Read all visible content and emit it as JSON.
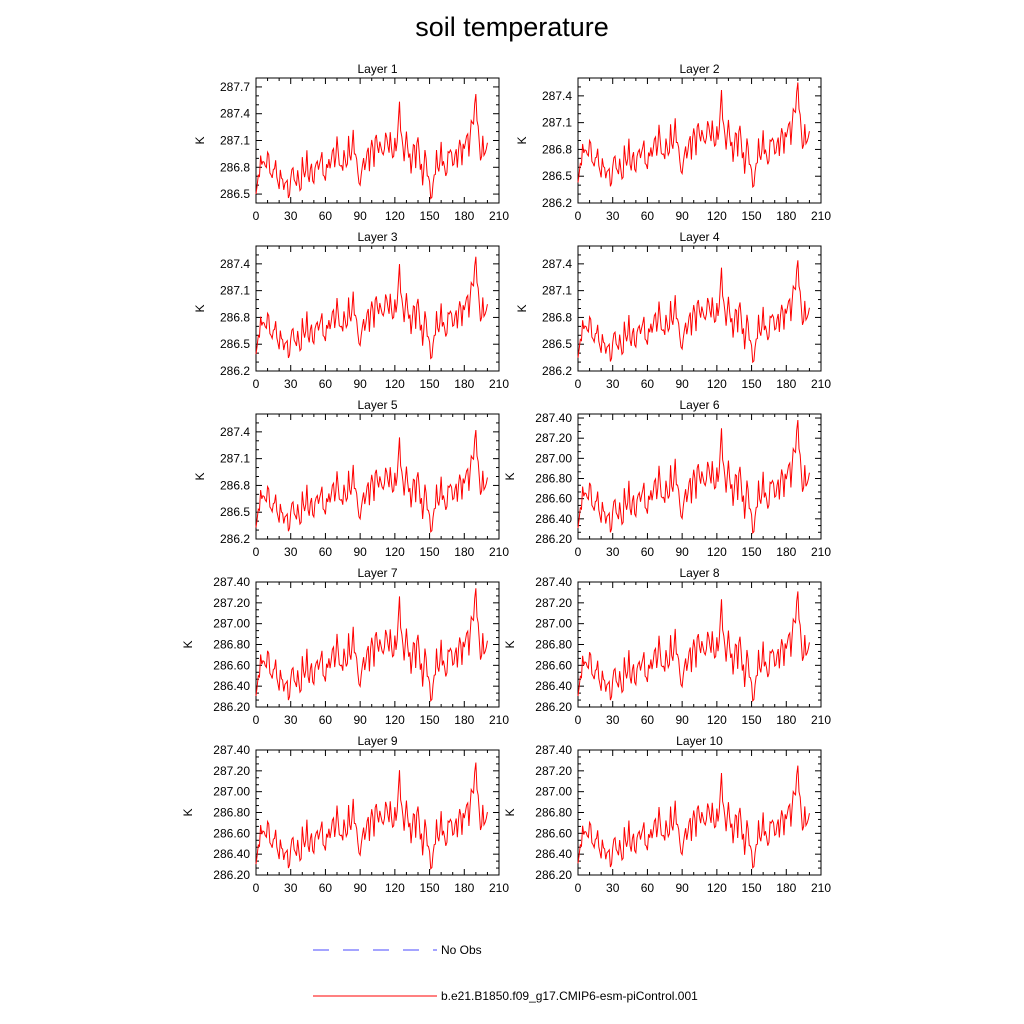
{
  "title": "soil temperature",
  "legend": {
    "entries": [
      {
        "label": "No Obs",
        "color": "#4a4aff",
        "style": "dashed"
      },
      {
        "label": "b.e21.B1850.f09_g17.CMIP6-esm-piControl.001",
        "color": "#ff0000",
        "style": "solid"
      }
    ]
  },
  "chart_data": {
    "type": "line",
    "ylabel": "K",
    "xlim": [
      0,
      210
    ],
    "xticks": [
      0,
      30,
      60,
      90,
      120,
      150,
      180,
      210
    ],
    "series_color": "#ff0000",
    "shape_keys": [
      [
        0,
        0.05
      ],
      [
        2,
        0.25
      ],
      [
        4,
        0.35
      ],
      [
        6,
        0.4
      ],
      [
        8,
        0.3
      ],
      [
        10,
        0.45
      ],
      [
        12,
        0.32
      ],
      [
        14,
        0.2
      ],
      [
        16,
        0.38
      ],
      [
        18,
        0.25
      ],
      [
        20,
        0.15
      ],
      [
        22,
        0.3
      ],
      [
        24,
        0.1
      ],
      [
        26,
        0.25
      ],
      [
        28,
        0.05
      ],
      [
        30,
        0.2
      ],
      [
        32,
        0.35
      ],
      [
        34,
        0.12
      ],
      [
        36,
        0.3
      ],
      [
        38,
        0.08
      ],
      [
        40,
        0.35
      ],
      [
        42,
        0.25
      ],
      [
        44,
        0.4
      ],
      [
        46,
        0.2
      ],
      [
        48,
        0.35
      ],
      [
        50,
        0.15
      ],
      [
        52,
        0.42
      ],
      [
        54,
        0.28
      ],
      [
        56,
        0.45
      ],
      [
        58,
        0.3
      ],
      [
        60,
        0.2
      ],
      [
        62,
        0.4
      ],
      [
        64,
        0.3
      ],
      [
        66,
        0.5
      ],
      [
        68,
        0.35
      ],
      [
        70,
        0.55
      ],
      [
        72,
        0.38
      ],
      [
        74,
        0.28
      ],
      [
        76,
        0.45
      ],
      [
        78,
        0.32
      ],
      [
        80,
        0.52
      ],
      [
        82,
        0.4
      ],
      [
        84,
        0.6
      ],
      [
        86,
        0.42
      ],
      [
        88,
        0.3
      ],
      [
        90,
        0.12
      ],
      [
        92,
        0.4
      ],
      [
        94,
        0.3
      ],
      [
        96,
        0.48
      ],
      [
        98,
        0.36
      ],
      [
        100,
        0.55
      ],
      [
        102,
        0.4
      ],
      [
        104,
        0.62
      ],
      [
        106,
        0.45
      ],
      [
        108,
        0.55
      ],
      [
        110,
        0.38
      ],
      [
        112,
        0.65
      ],
      [
        114,
        0.48
      ],
      [
        116,
        0.58
      ],
      [
        118,
        0.42
      ],
      [
        120,
        0.5
      ],
      [
        122,
        0.55
      ],
      [
        124,
        0.88
      ],
      [
        126,
        0.55
      ],
      [
        128,
        0.42
      ],
      [
        130,
        0.6
      ],
      [
        132,
        0.45
      ],
      [
        134,
        0.3
      ],
      [
        136,
        0.52
      ],
      [
        138,
        0.4
      ],
      [
        140,
        0.58
      ],
      [
        142,
        0.35
      ],
      [
        144,
        0.2
      ],
      [
        146,
        0.45
      ],
      [
        148,
        0.3
      ],
      [
        150,
        0.15
      ],
      [
        152,
        0.05
      ],
      [
        154,
        0.25
      ],
      [
        156,
        0.4
      ],
      [
        158,
        0.3
      ],
      [
        160,
        0.48
      ],
      [
        162,
        0.35
      ],
      [
        164,
        0.25
      ],
      [
        166,
        0.4
      ],
      [
        168,
        0.52
      ],
      [
        170,
        0.32
      ],
      [
        172,
        0.45
      ],
      [
        174,
        0.38
      ],
      [
        176,
        0.55
      ],
      [
        178,
        0.42
      ],
      [
        180,
        0.5
      ],
      [
        182,
        0.62
      ],
      [
        184,
        0.48
      ],
      [
        186,
        0.7
      ],
      [
        188,
        0.75
      ],
      [
        190,
        0.95
      ],
      [
        192,
        0.65
      ],
      [
        194,
        0.4
      ],
      [
        196,
        0.52
      ],
      [
        198,
        0.45
      ],
      [
        200,
        0.5
      ]
    ],
    "panels": [
      {
        "title": "Layer 1",
        "ylim": [
          286.4,
          287.8
        ],
        "yticks": [
          "286.5",
          "286.8",
          "287.1",
          "287.4",
          "287.7"
        ],
        "ymin_val": 286.45,
        "ymax_val": 287.62
      },
      {
        "title": "Layer 2",
        "ylim": [
          286.2,
          287.6
        ],
        "yticks": [
          "286.2",
          "286.5",
          "286.8",
          "287.1",
          "287.4"
        ],
        "ymin_val": 286.38,
        "ymax_val": 287.55
      },
      {
        "title": "Layer 3",
        "ylim": [
          286.2,
          287.6
        ],
        "yticks": [
          "286.2",
          "286.5",
          "286.8",
          "287.1",
          "287.4"
        ],
        "ymin_val": 286.34,
        "ymax_val": 287.48
      },
      {
        "title": "Layer 4",
        "ylim": [
          286.2,
          287.6
        ],
        "yticks": [
          "286.2",
          "286.5",
          "286.8",
          "287.1",
          "287.4"
        ],
        "ymin_val": 286.3,
        "ymax_val": 287.44
      },
      {
        "title": "Layer 5",
        "ylim": [
          286.2,
          287.6
        ],
        "yticks": [
          "286.2",
          "286.5",
          "286.8",
          "287.1",
          "287.4"
        ],
        "ymin_val": 286.28,
        "ymax_val": 287.42
      },
      {
        "title": "Layer 6",
        "ylim": [
          286.2,
          287.44
        ],
        "yticks": [
          "286.20",
          "286.40",
          "286.60",
          "286.80",
          "287.00",
          "287.20",
          "287.40"
        ],
        "ymin_val": 286.26,
        "ymax_val": 287.38
      },
      {
        "title": "Layer 7",
        "ylim": [
          286.2,
          287.4
        ],
        "yticks": [
          "286.20",
          "286.40",
          "286.60",
          "286.80",
          "287.00",
          "287.20",
          "287.40"
        ],
        "ymin_val": 286.26,
        "ymax_val": 287.34
      },
      {
        "title": "Layer 8",
        "ylim": [
          286.2,
          287.4
        ],
        "yticks": [
          "286.20",
          "286.40",
          "286.60",
          "286.80",
          "287.00",
          "287.20",
          "287.40"
        ],
        "ymin_val": 286.26,
        "ymax_val": 287.31
      },
      {
        "title": "Layer 9",
        "ylim": [
          286.2,
          287.4
        ],
        "yticks": [
          "286.20",
          "286.40",
          "286.60",
          "286.80",
          "287.00",
          "287.20",
          "287.40"
        ],
        "ymin_val": 286.26,
        "ymax_val": 287.28
      },
      {
        "title": "Layer 10",
        "ylim": [
          286.2,
          287.4
        ],
        "yticks": [
          "286.20",
          "286.40",
          "286.60",
          "286.80",
          "287.00",
          "287.20",
          "287.40"
        ],
        "ymin_val": 286.27,
        "ymax_val": 287.25
      }
    ]
  }
}
